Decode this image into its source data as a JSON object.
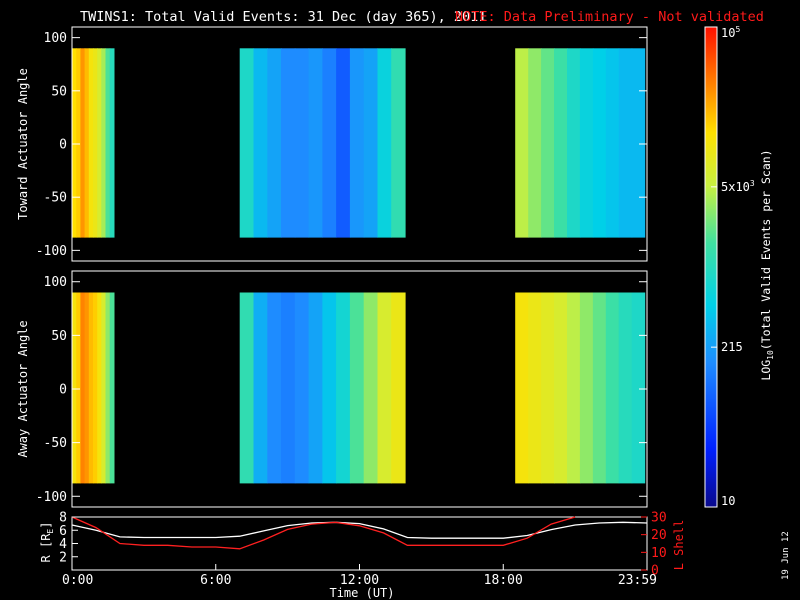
{
  "header": {
    "title": "TWINS1: Total Valid Events: 31 Dec (day 365), 2011",
    "note": "NOTE: Data Preliminary - Not validated"
  },
  "footer": {
    "stamp": "19 Jun 12"
  },
  "colors": {
    "background": "#000000",
    "axes": "#ffffff",
    "note": "#ff1a1a",
    "l_shell_line": "#ff2020",
    "r_line": "#ffffff"
  },
  "chart_data": [
    {
      "type": "heatmap",
      "title": "TWINS1: Total Valid Events: 31 Dec (day 365), 2011",
      "ylabel": "Toward Actuator Angle",
      "xlabel": "",
      "xlim": [
        0,
        24
      ],
      "ylim": [
        -110,
        110
      ],
      "y_ticks": [
        "100",
        "50",
        "0",
        "-50",
        "-100"
      ],
      "data_extent_y": [
        -88,
        90
      ],
      "scan_blocks": [
        {
          "start": 0.0,
          "end": 1.75,
          "level": [
            0.78,
            0.8,
            0.86,
            0.82,
            0.76,
            0.74,
            0.7,
            0.64,
            0.56,
            0.5
          ]
        },
        {
          "start": 7.0,
          "end": 13.9,
          "level": [
            0.48,
            0.38,
            0.34,
            0.3,
            0.3,
            0.32,
            0.28,
            0.22,
            0.32,
            0.34,
            0.44,
            0.52
          ]
        },
        {
          "start": 18.5,
          "end": 23.9,
          "level": [
            0.66,
            0.62,
            0.58,
            0.54,
            0.48,
            0.44,
            0.42,
            0.4,
            0.38,
            0.38
          ]
        }
      ]
    },
    {
      "type": "heatmap",
      "ylabel": "Away Actuator Angle",
      "xlabel": "",
      "xlim": [
        0,
        24
      ],
      "ylim": [
        -110,
        110
      ],
      "y_ticks": [
        "100",
        "50",
        "0",
        "-50",
        "-100"
      ],
      "data_extent_y": [
        -88,
        90
      ],
      "scan_blocks": [
        {
          "start": 0.0,
          "end": 1.75,
          "level": [
            0.76,
            0.8,
            0.88,
            0.86,
            0.82,
            0.8,
            0.76,
            0.7,
            0.62,
            0.56
          ]
        },
        {
          "start": 7.0,
          "end": 13.9,
          "level": [
            0.52,
            0.36,
            0.3,
            0.28,
            0.3,
            0.34,
            0.4,
            0.46,
            0.56,
            0.62,
            0.7,
            0.74
          ]
        },
        {
          "start": 18.5,
          "end": 23.9,
          "level": [
            0.76,
            0.74,
            0.72,
            0.7,
            0.66,
            0.62,
            0.58,
            0.54,
            0.5,
            0.48
          ]
        }
      ]
    },
    {
      "type": "line",
      "xlabel": "Time (UT)",
      "ylabel_left": "R [R",
      "ylabel_left_sub": "E",
      "ylabel_left_end": "]",
      "ylabel_right": "L Shell",
      "xlim": [
        0,
        24
      ],
      "ylim_left": [
        0,
        8
      ],
      "ylim_right": [
        0,
        30
      ],
      "x_ticks": [
        "0:00",
        "6:00",
        "12:00",
        "18:00",
        "23:59"
      ],
      "y_ticks_left": [
        "8",
        "6",
        "4",
        "2"
      ],
      "y_ticks_right": [
        "30",
        "20",
        "10",
        "0"
      ],
      "series": [
        {
          "axis": "left",
          "x": [
            0,
            1,
            2,
            3,
            4,
            5,
            6,
            7,
            8,
            9,
            10,
            11,
            12,
            13,
            14,
            15,
            16,
            17,
            18,
            19,
            20,
            21,
            22,
            23,
            24
          ],
          "values": [
            6.8,
            6.0,
            5.0,
            4.9,
            4.9,
            4.9,
            4.9,
            5.1,
            5.9,
            6.7,
            7.1,
            7.2,
            7.0,
            6.2,
            4.9,
            4.8,
            4.8,
            4.8,
            4.8,
            5.2,
            6.1,
            6.8,
            7.1,
            7.2,
            7.1
          ]
        },
        {
          "axis": "right",
          "x": [
            0,
            1,
            2,
            3,
            4,
            5,
            6,
            7,
            8,
            9,
            10,
            11,
            12,
            13,
            14,
            15,
            16,
            17,
            18,
            19,
            20,
            21
          ],
          "values": [
            31,
            24,
            15,
            14,
            14,
            13,
            13,
            12,
            17,
            23,
            26,
            27,
            25,
            21,
            14,
            14,
            14,
            14,
            14,
            18,
            26,
            31
          ]
        }
      ]
    }
  ],
  "colorbar": {
    "label_pre": "LOG",
    "label_sub": "10",
    "label_post": "(Total Valid Events per Scan)",
    "ticks": [
      {
        "label": "10",
        "frac": 0.0
      },
      {
        "label": "215",
        "frac": 0.333
      },
      {
        "label": "5x10",
        "sup": "3",
        "frac": 0.667
      },
      {
        "label": "10",
        "sup": "5",
        "frac": 1.0
      }
    ]
  }
}
